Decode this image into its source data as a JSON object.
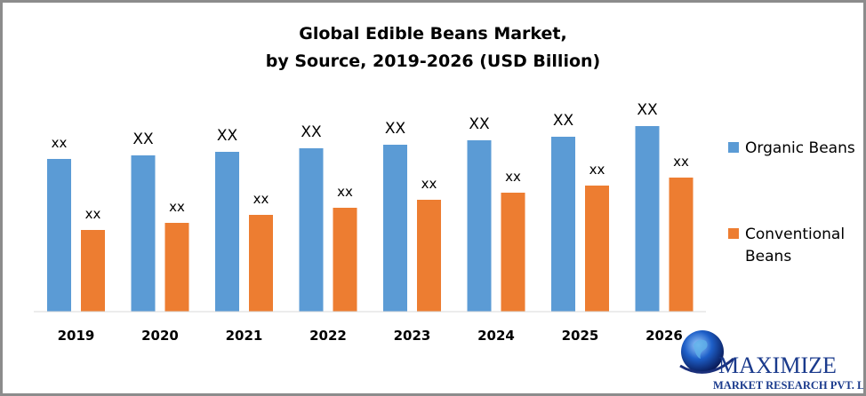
{
  "chart_data": {
    "type": "bar",
    "title": "Global Edible Beans Market,",
    "subtitle": "by Source, 2019-2026 (USD Billion)",
    "categories": [
      "2019",
      "2020",
      "2021",
      "2022",
      "2023",
      "2024",
      "2025",
      "2026"
    ],
    "series": [
      {
        "name": "Organic Beans",
        "color": "#5b9bd5",
        "values": [
          17.2,
          17.6,
          18.0,
          18.4,
          18.8,
          19.3,
          19.7,
          20.9
        ],
        "data_labels": [
          "xx",
          "XX",
          "XX",
          "XX",
          "XX",
          "XX",
          "XX",
          "XX"
        ]
      },
      {
        "name": "Conventional Beans",
        "color": "#ed7d31",
        "values": [
          9.2,
          10.0,
          10.9,
          11.7,
          12.6,
          13.4,
          14.2,
          15.1
        ],
        "data_labels": [
          "xx",
          "xx",
          "xx",
          "xx",
          "xx",
          "xx",
          "xx",
          "xx"
        ]
      }
    ],
    "xlabel": "",
    "ylabel": "",
    "ylim": [
      0,
      22
    ],
    "grid": false,
    "legend_position": "right"
  },
  "logo": {
    "name": "MAXIMIZE",
    "tagline": "MARKET RESEARCH PVT. LTD."
  }
}
